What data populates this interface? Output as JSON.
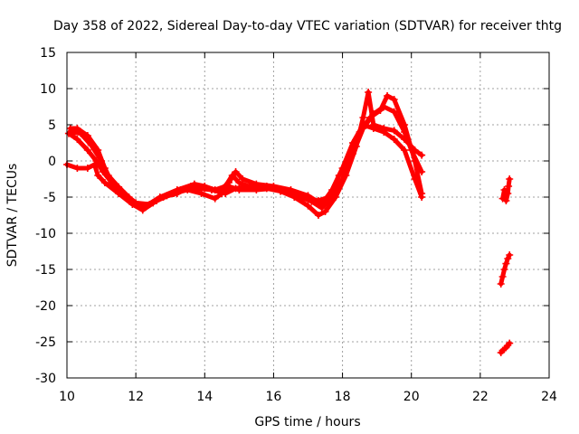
{
  "chart_data": {
    "type": "scatter",
    "title": "Day 358 of 2022, Sidereal Day-to-day VTEC variation (SDTVAR) for receiver thtg",
    "xlabel": "GPS time / hours",
    "ylabel": "SDTVAR / TECUs",
    "xlim": [
      10,
      24
    ],
    "ylim": [
      -30,
      15
    ],
    "xticks": [
      10,
      12,
      14,
      16,
      18,
      20,
      22,
      24
    ],
    "yticks": [
      -30,
      -25,
      -20,
      -15,
      -10,
      -5,
      0,
      5,
      10,
      15
    ],
    "xtick_labels": [
      "10",
      "12",
      "14",
      "16",
      "18",
      "20",
      "22",
      "24"
    ],
    "ytick_labels": [
      "-30",
      "-25",
      "-20",
      "-15",
      "-10",
      "-5",
      "0",
      "5",
      "10",
      "15"
    ],
    "grid": true,
    "marker": "plus",
    "color": "#ff0000",
    "series": [
      {
        "name": "trace-1",
        "points": [
          [
            10.1,
            4.5
          ],
          [
            10.3,
            4.5
          ],
          [
            10.6,
            3.5
          ],
          [
            10.9,
            1.5
          ],
          [
            11.1,
            -1
          ],
          [
            11.3,
            -3
          ],
          [
            11.6,
            -4.2
          ],
          [
            12.0,
            -6
          ],
          [
            12.3,
            -6.2
          ],
          [
            12.7,
            -5
          ],
          [
            13.2,
            -4
          ],
          [
            13.7,
            -3.2
          ],
          [
            14.0,
            -3.5
          ],
          [
            14.3,
            -4
          ],
          [
            14.6,
            -3.5
          ],
          [
            14.8,
            -2
          ],
          [
            15.0,
            -3
          ],
          [
            15.4,
            -3.7
          ],
          [
            15.8,
            -3.8
          ],
          [
            16.2,
            -4.2
          ],
          [
            16.6,
            -5
          ],
          [
            17.0,
            -6.2
          ],
          [
            17.3,
            -7.5
          ],
          [
            17.5,
            -7
          ],
          [
            17.8,
            -5
          ],
          [
            18.1,
            -2
          ],
          [
            18.4,
            2
          ],
          [
            18.6,
            6
          ],
          [
            18.75,
            9.5
          ],
          [
            18.9,
            5
          ],
          [
            19.2,
            4.5
          ],
          [
            19.5,
            4.2
          ],
          [
            19.8,
            3
          ],
          [
            20.1,
            1.5
          ],
          [
            20.3,
            0.8
          ]
        ]
      },
      {
        "name": "trace-2",
        "points": [
          [
            10.1,
            4
          ],
          [
            10.4,
            3.8
          ],
          [
            10.7,
            2.2
          ],
          [
            11.0,
            0
          ],
          [
            11.2,
            -2
          ],
          [
            11.5,
            -3.6
          ],
          [
            11.8,
            -5
          ],
          [
            12.1,
            -6.2
          ],
          [
            12.5,
            -5.8
          ],
          [
            12.9,
            -4.8
          ],
          [
            13.3,
            -4
          ],
          [
            13.8,
            -3.8
          ],
          [
            14.2,
            -4
          ],
          [
            14.6,
            -4.5
          ],
          [
            14.9,
            -3.8
          ],
          [
            15.3,
            -3.5
          ],
          [
            15.8,
            -3.5
          ],
          [
            16.2,
            -4
          ],
          [
            16.7,
            -4.8
          ],
          [
            17.1,
            -5.6
          ],
          [
            17.4,
            -6.5
          ],
          [
            17.7,
            -5
          ],
          [
            18.0,
            -2.5
          ],
          [
            18.3,
            1
          ],
          [
            18.6,
            4.5
          ],
          [
            18.9,
            6.5
          ],
          [
            19.2,
            7.5
          ],
          [
            19.5,
            6.8
          ],
          [
            19.8,
            4
          ],
          [
            20.0,
            1.5
          ],
          [
            20.3,
            -1.5
          ]
        ]
      },
      {
        "name": "trace-3",
        "points": [
          [
            10.0,
            -0.5
          ],
          [
            10.3,
            -1
          ],
          [
            10.6,
            -1
          ],
          [
            10.8,
            -0.5
          ],
          [
            10.9,
            -2
          ],
          [
            11.1,
            -3
          ],
          [
            11.5,
            -4.5
          ],
          [
            11.9,
            -6
          ],
          [
            12.2,
            -6.8
          ],
          [
            12.6,
            -5.5
          ],
          [
            13.1,
            -4.5
          ],
          [
            13.5,
            -4
          ],
          [
            13.9,
            -4.5
          ],
          [
            14.3,
            -5.2
          ],
          [
            14.5,
            -4.5
          ],
          [
            14.7,
            -3.5
          ],
          [
            15.0,
            -4
          ],
          [
            15.5,
            -4
          ],
          [
            16.0,
            -3.8
          ],
          [
            16.5,
            -4.5
          ],
          [
            17.0,
            -5.2
          ],
          [
            17.3,
            -5.5
          ],
          [
            17.6,
            -5
          ],
          [
            17.9,
            -2
          ],
          [
            18.2,
            0.5
          ],
          [
            18.5,
            4
          ],
          [
            18.8,
            6
          ],
          [
            19.1,
            7
          ],
          [
            19.3,
            9
          ],
          [
            19.5,
            8.5
          ],
          [
            19.8,
            5
          ],
          [
            20.1,
            0
          ],
          [
            20.3,
            -4.5
          ]
        ]
      },
      {
        "name": "trace-4",
        "points": [
          [
            10.05,
            3.8
          ],
          [
            10.3,
            3
          ],
          [
            10.6,
            1.5
          ],
          [
            10.85,
            0
          ],
          [
            11.05,
            -1.5
          ],
          [
            11.3,
            -3
          ],
          [
            11.7,
            -4.8
          ],
          [
            12.0,
            -5.8
          ],
          [
            12.4,
            -6
          ],
          [
            12.8,
            -5
          ],
          [
            13.2,
            -4.5
          ],
          [
            13.6,
            -3.5
          ],
          [
            14.0,
            -3.8
          ],
          [
            14.4,
            -4.2
          ],
          [
            14.7,
            -3
          ],
          [
            14.9,
            -1.5
          ],
          [
            15.1,
            -2.5
          ],
          [
            15.5,
            -3.2
          ],
          [
            16.0,
            -3.5
          ],
          [
            16.5,
            -4
          ],
          [
            17.0,
            -4.8
          ],
          [
            17.4,
            -6
          ],
          [
            17.7,
            -4
          ],
          [
            18.0,
            -1
          ],
          [
            18.3,
            2.5
          ],
          [
            18.6,
            5
          ],
          [
            18.9,
            4.5
          ],
          [
            19.2,
            4
          ],
          [
            19.5,
            3
          ],
          [
            19.8,
            1.5
          ],
          [
            20.1,
            -2.5
          ],
          [
            20.3,
            -5
          ]
        ]
      },
      {
        "name": "trace-5",
        "points": [
          [
            22.65,
            -5.2
          ],
          [
            22.7,
            -4
          ],
          [
            22.75,
            -5.5
          ],
          [
            22.8,
            -4.5
          ],
          [
            22.82,
            -3.5
          ],
          [
            22.85,
            -2.5
          ]
        ]
      },
      {
        "name": "trace-6",
        "points": [
          [
            22.6,
            -17
          ],
          [
            22.65,
            -16
          ],
          [
            22.7,
            -15
          ],
          [
            22.75,
            -14.2
          ],
          [
            22.8,
            -13.5
          ],
          [
            22.85,
            -13
          ]
        ]
      },
      {
        "name": "trace-7",
        "points": [
          [
            22.6,
            -26.5
          ],
          [
            22.65,
            -26.2
          ],
          [
            22.7,
            -26
          ],
          [
            22.75,
            -25.8
          ],
          [
            22.8,
            -25.5
          ],
          [
            22.85,
            -25.2
          ]
        ]
      }
    ]
  }
}
